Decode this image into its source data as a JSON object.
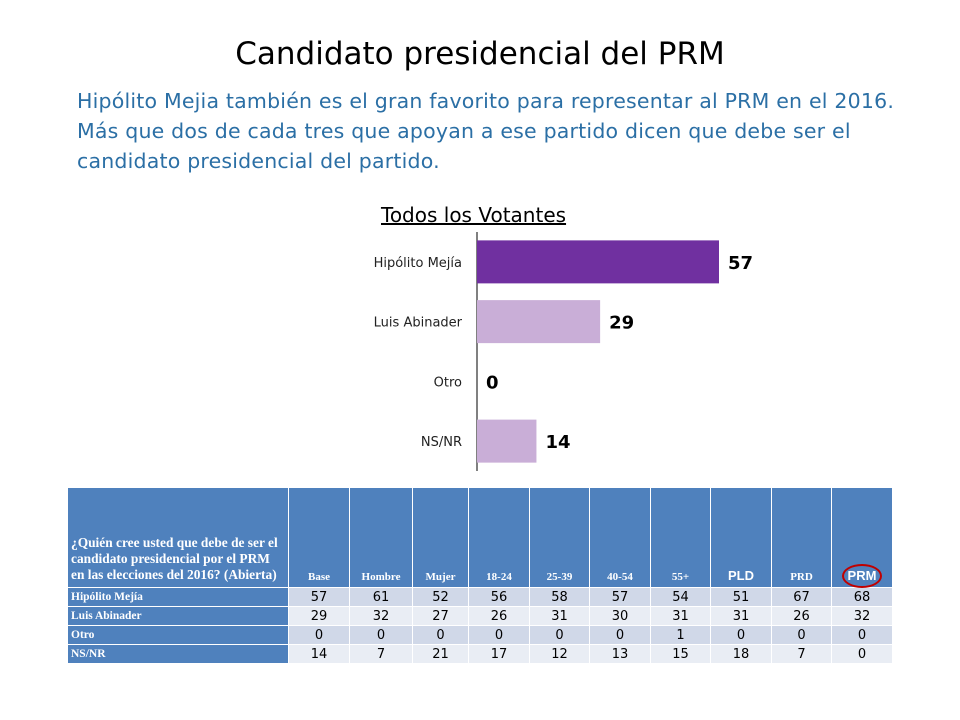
{
  "slide": {
    "title": "Candidato presidencial del PRM",
    "subtitle": "Hipólito Mejia también es el gran favorito para representar al PRM en el 2016. Más que dos de cada tres que apoyan a ese partido dicen que debe ser el candidato presidencial del partido."
  },
  "chart_data": {
    "type": "bar",
    "orientation": "horizontal",
    "title": "Todos los Votantes",
    "categories": [
      "Hipólito Mejía",
      "Luis Abinader",
      "Otro",
      "NS/NR"
    ],
    "values": [
      57,
      29,
      0,
      14
    ],
    "data_labels": [
      "57",
      "29",
      "0",
      "14"
    ],
    "colors": [
      "#7030A0",
      "#C9AED7",
      "#C9AED7",
      "#C9AED7"
    ],
    "xlim": [
      0,
      70
    ],
    "grid": false,
    "legend": "none"
  },
  "table": {
    "question": "¿Quién cree usted que debe de ser el candidato presidencial por el PRM en las elecciones del 2016? (Abierta)",
    "columns": [
      "Base",
      "Hombre",
      "Mujer",
      "18-24",
      "25-39",
      "40-54",
      "55+",
      "PLD",
      "PRD",
      "PRM"
    ],
    "rows": [
      {
        "label": "Hipólito Mejía",
        "values": [
          "57",
          "61",
          "52",
          "56",
          "58",
          "57",
          "54",
          "51",
          "67",
          "68"
        ]
      },
      {
        "label": "Luis Abinader",
        "values": [
          "29",
          "32",
          "27",
          "26",
          "31",
          "30",
          "31",
          "31",
          "26",
          "32"
        ]
      },
      {
        "label": "Otro",
        "values": [
          "0",
          "0",
          "0",
          "0",
          "0",
          "0",
          "1",
          "0",
          "0",
          "0"
        ]
      },
      {
        "label": "NS/NR",
        "values": [
          "14",
          "7",
          "21",
          "17",
          "12",
          "13",
          "15",
          "18",
          "7",
          "0"
        ]
      }
    ],
    "highlight_color": "#C00000"
  }
}
